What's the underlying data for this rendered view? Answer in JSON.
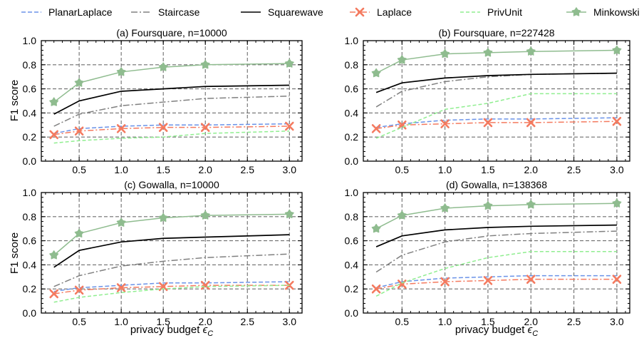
{
  "figure": {
    "y_label": "F1 score",
    "x_label_text": "privacy budget ",
    "x_label_symbol": "ϵ",
    "x_label_subscript": "C"
  },
  "legend": [
    {
      "key": "planar",
      "label": "PlanarLaplace"
    },
    {
      "key": "stair",
      "label": "Staircase"
    },
    {
      "key": "square",
      "label": "Squarewave"
    },
    {
      "key": "laplace",
      "label": "Laplace"
    },
    {
      "key": "privunit",
      "label": "PrivUnit"
    },
    {
      "key": "mink",
      "label": "Minkowski"
    }
  ],
  "series_style": {
    "planar": {
      "color": "#6b93e8",
      "dash": "6,3",
      "marker": "none"
    },
    "stair": {
      "color": "#808080",
      "dash": "9,3,2,3",
      "marker": "none"
    },
    "square": {
      "color": "#000000",
      "dash": "",
      "marker": "none"
    },
    "laplace": {
      "color": "#f47a5f",
      "dash": "8,3,2,3",
      "marker": "x"
    },
    "privunit": {
      "color": "#90ee90",
      "dash": "5,3",
      "marker": "none"
    },
    "mink": {
      "color": "#8fbc8f",
      "dash": "",
      "marker": "star"
    }
  },
  "chart_data": [
    {
      "type": "line",
      "title": "(a) Foursquare, n=10000",
      "x": [
        0.2,
        0.5,
        1.0,
        1.5,
        2.0,
        3.0
      ],
      "xticks": [
        0.5,
        1.0,
        1.5,
        2.0,
        2.5,
        3.0
      ],
      "xtick_labels": [
        "0.5",
        "1.0",
        "1.5",
        "2.0",
        "2.5",
        "3.0"
      ],
      "xlim": [
        0.05,
        3.15
      ],
      "yticks": [
        0.0,
        0.2,
        0.4,
        0.6,
        0.8,
        1.0
      ],
      "ytick_labels": [
        "0.0",
        "0.2",
        "0.4",
        "0.6",
        "0.8",
        "1.0"
      ],
      "ylim": [
        0,
        1
      ],
      "grid": true,
      "series": [
        {
          "key": "planar",
          "name": "PlanarLaplace",
          "values": [
            0.23,
            0.27,
            0.29,
            0.3,
            0.3,
            0.31
          ]
        },
        {
          "key": "stair",
          "name": "Staircase",
          "values": [
            0.29,
            0.39,
            0.46,
            0.49,
            0.52,
            0.54
          ]
        },
        {
          "key": "square",
          "name": "Squarewave",
          "values": [
            0.39,
            0.5,
            0.58,
            0.6,
            0.62,
            0.63
          ]
        },
        {
          "key": "laplace",
          "name": "Laplace",
          "values": [
            0.22,
            0.25,
            0.27,
            0.28,
            0.28,
            0.29
          ]
        },
        {
          "key": "privunit",
          "name": "PrivUnit",
          "values": [
            0.15,
            0.17,
            0.19,
            0.2,
            0.23,
            0.25
          ]
        },
        {
          "key": "mink",
          "name": "Minkowski",
          "values": [
            0.49,
            0.65,
            0.74,
            0.78,
            0.8,
            0.81
          ]
        }
      ]
    },
    {
      "type": "line",
      "title": "(b) Foursquare, n=227428",
      "x": [
        0.2,
        0.5,
        1.0,
        1.5,
        2.0,
        3.0
      ],
      "xticks": [
        0.5,
        1.0,
        1.5,
        2.0,
        2.5,
        3.0
      ],
      "xtick_labels": [
        "0.5",
        "1.0",
        "1.5",
        "2.0",
        "2.5",
        "3.0"
      ],
      "xlim": [
        0.05,
        3.15
      ],
      "yticks": [
        0.0,
        0.2,
        0.4,
        0.6,
        0.8,
        1.0
      ],
      "ytick_labels": [
        "0.0",
        "0.2",
        "0.4",
        "0.6",
        "0.8",
        "1.0"
      ],
      "ylim": [
        0,
        1
      ],
      "grid": true,
      "series": [
        {
          "key": "planar",
          "name": "PlanarLaplace",
          "values": [
            0.28,
            0.31,
            0.34,
            0.35,
            0.35,
            0.36
          ]
        },
        {
          "key": "stair",
          "name": "Staircase",
          "values": [
            0.45,
            0.58,
            0.66,
            0.7,
            0.72,
            0.73
          ]
        },
        {
          "key": "square",
          "name": "Squarewave",
          "values": [
            0.57,
            0.65,
            0.69,
            0.71,
            0.72,
            0.73
          ]
        },
        {
          "key": "laplace",
          "name": "Laplace",
          "values": [
            0.27,
            0.3,
            0.31,
            0.32,
            0.32,
            0.33
          ]
        },
        {
          "key": "privunit",
          "name": "PrivUnit",
          "values": [
            0.19,
            0.28,
            0.43,
            0.48,
            0.56,
            0.56
          ]
        },
        {
          "key": "mink",
          "name": "Minkowski",
          "values": [
            0.73,
            0.84,
            0.89,
            0.9,
            0.91,
            0.92
          ]
        }
      ]
    },
    {
      "type": "line",
      "title": "(c) Gowalla, n=10000",
      "x": [
        0.2,
        0.5,
        1.0,
        1.5,
        2.0,
        3.0
      ],
      "xticks": [
        0.5,
        1.0,
        1.5,
        2.0,
        2.5,
        3.0
      ],
      "xtick_labels": [
        "0.5",
        "1.0",
        "1.5",
        "2.0",
        "2.5",
        "3.0"
      ],
      "xlim": [
        0.05,
        3.15
      ],
      "yticks": [
        0.0,
        0.2,
        0.4,
        0.6,
        0.8,
        1.0
      ],
      "ytick_labels": [
        "0.0",
        "0.2",
        "0.4",
        "0.6",
        "0.8",
        "1.0"
      ],
      "ylim": [
        0,
        1
      ],
      "grid": true,
      "series": [
        {
          "key": "planar",
          "name": "PlanarLaplace",
          "values": [
            0.18,
            0.21,
            0.23,
            0.25,
            0.25,
            0.26
          ]
        },
        {
          "key": "stair",
          "name": "Staircase",
          "values": [
            0.22,
            0.31,
            0.39,
            0.43,
            0.46,
            0.49
          ]
        },
        {
          "key": "square",
          "name": "Squarewave",
          "values": [
            0.38,
            0.52,
            0.59,
            0.62,
            0.63,
            0.65
          ]
        },
        {
          "key": "laplace",
          "name": "Laplace",
          "values": [
            0.16,
            0.19,
            0.21,
            0.22,
            0.23,
            0.23
          ]
        },
        {
          "key": "privunit",
          "name": "PrivUnit",
          "values": [
            0.09,
            0.13,
            0.17,
            0.2,
            0.22,
            0.23
          ]
        },
        {
          "key": "mink",
          "name": "Minkowski",
          "values": [
            0.48,
            0.66,
            0.75,
            0.79,
            0.81,
            0.82
          ]
        }
      ]
    },
    {
      "type": "line",
      "title": "(d) Gowalla, n=138368",
      "x": [
        0.2,
        0.5,
        1.0,
        1.5,
        2.0,
        3.0
      ],
      "xticks": [
        0.5,
        1.0,
        1.5,
        2.0,
        2.5,
        3.0
      ],
      "xtick_labels": [
        "0.5",
        "1.0",
        "1.5",
        "2.0",
        "2.5",
        "3.0"
      ],
      "xlim": [
        0.05,
        3.15
      ],
      "yticks": [
        0.0,
        0.2,
        0.4,
        0.6,
        0.8,
        1.0
      ],
      "ytick_labels": [
        "0.0",
        "0.2",
        "0.4",
        "0.6",
        "0.8",
        "1.0"
      ],
      "ylim": [
        0,
        1
      ],
      "grid": true,
      "series": [
        {
          "key": "planar",
          "name": "PlanarLaplace",
          "values": [
            0.21,
            0.26,
            0.29,
            0.3,
            0.31,
            0.31
          ]
        },
        {
          "key": "stair",
          "name": "Staircase",
          "values": [
            0.34,
            0.48,
            0.59,
            0.64,
            0.66,
            0.68
          ]
        },
        {
          "key": "square",
          "name": "Squarewave",
          "values": [
            0.55,
            0.64,
            0.69,
            0.71,
            0.72,
            0.73
          ]
        },
        {
          "key": "laplace",
          "name": "Laplace",
          "values": [
            0.2,
            0.24,
            0.26,
            0.27,
            0.28,
            0.28
          ]
        },
        {
          "key": "privunit",
          "name": "PrivUnit",
          "values": [
            0.14,
            0.25,
            0.37,
            0.46,
            0.51,
            0.51
          ]
        },
        {
          "key": "mink",
          "name": "Minkowski",
          "values": [
            0.7,
            0.81,
            0.87,
            0.89,
            0.9,
            0.91
          ]
        }
      ]
    }
  ]
}
